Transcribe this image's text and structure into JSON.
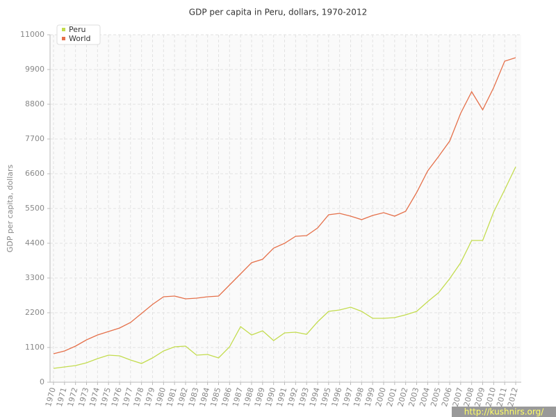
{
  "chart_data": {
    "type": "line",
    "title": "GDP per capita in Peru, dollars, 1970-2012",
    "y_label": "GDP per capita, dollars",
    "watermark": "http://kushnirs.org/",
    "categories": [
      "1970",
      "1971",
      "1972",
      "1973",
      "1974",
      "1975",
      "1976",
      "1977",
      "1978",
      "1979",
      "1980",
      "1981",
      "1982",
      "1983",
      "1984",
      "1985",
      "1986",
      "1987",
      "1988",
      "1989",
      "1990",
      "1991",
      "1992",
      "1993",
      "1994",
      "1995",
      "1996",
      "1997",
      "1998",
      "1999",
      "2000",
      "2001",
      "2002",
      "2003",
      "2004",
      "2005",
      "2006",
      "2007",
      "2008",
      "2009",
      "2010",
      "2011",
      "2012"
    ],
    "series": [
      {
        "name": "Peru",
        "color": "#c3dc4e",
        "values": [
          440,
          484,
          528,
          616,
          748,
          858,
          836,
          704,
          594,
          770,
          990,
          1122,
          1144,
          858,
          880,
          770,
          1122,
          1760,
          1496,
          1628,
          1320,
          1562,
          1584,
          1518,
          1914,
          2244,
          2288,
          2376,
          2244,
          2024,
          2024,
          2046,
          2134,
          2244,
          2552,
          2838,
          3278,
          3784,
          4488,
          4488,
          5390,
          6094,
          6820
        ]
      },
      {
        "name": "World",
        "color": "#e5704a",
        "values": [
          902,
          990,
          1144,
          1342,
          1496,
          1606,
          1716,
          1892,
          2178,
          2464,
          2706,
          2728,
          2640,
          2662,
          2706,
          2728,
          3080,
          3432,
          3784,
          3894,
          4246,
          4400,
          4620,
          4642,
          4884,
          5302,
          5346,
          5258,
          5148,
          5280,
          5368,
          5258,
          5412,
          6006,
          6688,
          7150,
          7634,
          8514,
          9196,
          8624,
          9328,
          10164,
          10274
        ]
      }
    ],
    "ylim": [
      0,
      11000
    ],
    "yticks": [
      0,
      1100,
      2200,
      3300,
      4400,
      5500,
      6600,
      7700,
      8800,
      9900,
      11000
    ],
    "grid": true,
    "legend": "top-left"
  }
}
